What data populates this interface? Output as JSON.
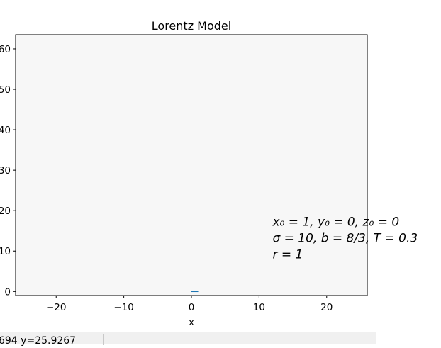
{
  "window": {
    "status_text": "694     y=25.9267"
  },
  "chart_data": {
    "type": "line",
    "title": "Lorentz Model",
    "xlabel": "x",
    "ylabel": "",
    "xlim": [
      -26,
      26
    ],
    "ylim": [
      -1,
      63.5
    ],
    "xticks": [
      -20,
      -10,
      0,
      10,
      20
    ],
    "xtick_labels": [
      "−20",
      "−10",
      "0",
      "10",
      "20"
    ],
    "yticks": [
      0,
      10,
      20,
      30,
      40,
      50,
      60
    ],
    "ytick_labels": [
      "0",
      "10",
      "20",
      "30",
      "40",
      "50",
      "60"
    ],
    "grid": false,
    "axes_facecolor": "#f7f7f7",
    "series": [
      {
        "x": [
          0.0,
          1.0
        ],
        "y": [
          0.0,
          0.0
        ],
        "color": "#1f77b4"
      }
    ],
    "annotation": {
      "lines": [
        "x₀ = 1, y₀ = 0, z₀ = 0",
        "σ = 10, b = 8/3, T = 0.3",
        "r = 1"
      ],
      "x": 12,
      "y": 16.3
    }
  }
}
